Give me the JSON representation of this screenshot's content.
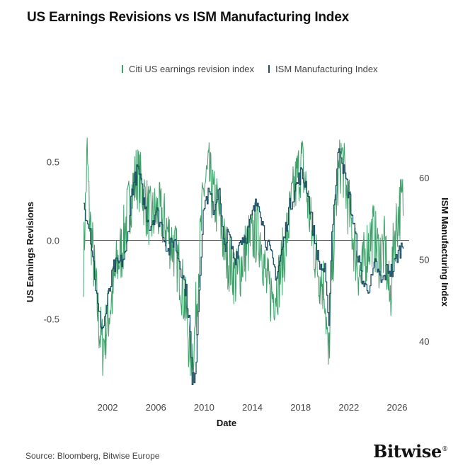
{
  "chart_data": {
    "type": "line",
    "title": "US Earnings Revisions vs ISM Manufacturing Index",
    "xlabel": "Date",
    "ylabel_left": "US Earnings Revisions",
    "ylabel_right": "ISM Manufacturing Index",
    "xlim": [
      2000.0,
      2027.0
    ],
    "ylim_left": [
      -0.88,
      0.74
    ],
    "ylim_right": [
      35.4,
      66.6
    ],
    "x_ticks": [
      "2002",
      "2006",
      "2010",
      "2014",
      "2018",
      "2022",
      "2026"
    ],
    "y_ticks_left": [
      "0.5",
      "0.0",
      "-0.5"
    ],
    "y_ticks_right": [
      "60",
      "50",
      "40"
    ],
    "zero_line": 0.0,
    "grid": false,
    "legend_position": "top",
    "series": [
      {
        "name": "Citi US earnings revision index",
        "color": "#3fa06a",
        "axis": "left",
        "anchors": [
          [
            2000.0,
            -0.15
          ],
          [
            2000.3,
            0.55
          ],
          [
            2000.5,
            0.15
          ],
          [
            2000.8,
            -0.1
          ],
          [
            2001.0,
            -0.3
          ],
          [
            2001.3,
            -0.55
          ],
          [
            2001.6,
            -0.68
          ],
          [
            2002.0,
            -0.5
          ],
          [
            2002.4,
            -0.35
          ],
          [
            2002.8,
            -0.15
          ],
          [
            2003.2,
            -0.05
          ],
          [
            2003.6,
            0.15
          ],
          [
            2004.0,
            0.3
          ],
          [
            2004.4,
            0.42
          ],
          [
            2004.8,
            0.35
          ],
          [
            2005.2,
            0.22
          ],
          [
            2005.6,
            0.12
          ],
          [
            2006.0,
            0.18
          ],
          [
            2006.5,
            0.15
          ],
          [
            2007.0,
            0.05
          ],
          [
            2007.5,
            -0.05
          ],
          [
            2008.0,
            -0.2
          ],
          [
            2008.5,
            -0.45
          ],
          [
            2008.9,
            -0.78
          ],
          [
            2009.2,
            -0.62
          ],
          [
            2009.6,
            -0.1
          ],
          [
            2010.0,
            0.35
          ],
          [
            2010.4,
            0.42
          ],
          [
            2010.8,
            0.25
          ],
          [
            2011.2,
            0.2
          ],
          [
            2011.7,
            -0.05
          ],
          [
            2012.2,
            -0.15
          ],
          [
            2012.7,
            -0.25
          ],
          [
            2013.2,
            -0.12
          ],
          [
            2013.7,
            -0.02
          ],
          [
            2014.2,
            0.05
          ],
          [
            2014.7,
            0.02
          ],
          [
            2015.2,
            -0.3
          ],
          [
            2015.7,
            -0.35
          ],
          [
            2016.2,
            -0.25
          ],
          [
            2016.7,
            -0.05
          ],
          [
            2017.2,
            0.2
          ],
          [
            2017.7,
            0.4
          ],
          [
            2018.1,
            0.5
          ],
          [
            2018.5,
            0.3
          ],
          [
            2019.0,
            0.0
          ],
          [
            2019.5,
            -0.2
          ],
          [
            2020.0,
            -0.3
          ],
          [
            2020.3,
            -0.8
          ],
          [
            2020.6,
            -0.2
          ],
          [
            2021.0,
            0.3
          ],
          [
            2021.4,
            0.55
          ],
          [
            2021.8,
            0.3
          ],
          [
            2022.2,
            0.1
          ],
          [
            2022.6,
            -0.1
          ],
          [
            2023.0,
            -0.25
          ],
          [
            2023.5,
            -0.05
          ],
          [
            2024.0,
            0.05
          ],
          [
            2024.5,
            -0.1
          ],
          [
            2025.0,
            -0.05
          ],
          [
            2025.4,
            -0.4
          ],
          [
            2025.8,
            0.05
          ],
          [
            2026.2,
            0.2
          ],
          [
            2026.5,
            0.25
          ]
        ]
      },
      {
        "name": "ISM Manufacturing Index",
        "color": "#1c4f63",
        "axis": "right",
        "anchors": [
          [
            2000.0,
            56.5
          ],
          [
            2000.4,
            55.0
          ],
          [
            2000.8,
            50.0
          ],
          [
            2001.2,
            43.5
          ],
          [
            2001.6,
            41.5
          ],
          [
            2002.0,
            45.0
          ],
          [
            2002.5,
            49.0
          ],
          [
            2003.0,
            49.5
          ],
          [
            2003.5,
            50.5
          ],
          [
            2004.0,
            58.5
          ],
          [
            2004.5,
            61.0
          ],
          [
            2005.0,
            57.0
          ],
          [
            2005.5,
            54.0
          ],
          [
            2006.0,
            56.0
          ],
          [
            2006.5,
            54.0
          ],
          [
            2007.0,
            51.0
          ],
          [
            2007.5,
            52.5
          ],
          [
            2008.0,
            49.5
          ],
          [
            2008.5,
            46.0
          ],
          [
            2008.8,
            42.0
          ],
          [
            2009.0,
            34.5
          ],
          [
            2009.3,
            37.0
          ],
          [
            2009.6,
            47.5
          ],
          [
            2010.0,
            57.0
          ],
          [
            2010.4,
            58.0
          ],
          [
            2010.8,
            56.0
          ],
          [
            2011.2,
            59.0
          ],
          [
            2011.6,
            51.5
          ],
          [
            2012.0,
            53.0
          ],
          [
            2012.5,
            50.0
          ],
          [
            2013.0,
            52.5
          ],
          [
            2013.5,
            53.0
          ],
          [
            2014.0,
            55.5
          ],
          [
            2014.5,
            57.5
          ],
          [
            2015.0,
            53.0
          ],
          [
            2015.5,
            50.5
          ],
          [
            2016.0,
            48.0
          ],
          [
            2016.5,
            51.5
          ],
          [
            2017.0,
            56.0
          ],
          [
            2017.5,
            58.5
          ],
          [
            2018.0,
            60.5
          ],
          [
            2018.5,
            59.0
          ],
          [
            2019.0,
            54.0
          ],
          [
            2019.5,
            49.5
          ],
          [
            2020.0,
            48.5
          ],
          [
            2020.3,
            41.5
          ],
          [
            2020.6,
            54.0
          ],
          [
            2020.9,
            59.0
          ],
          [
            2021.2,
            64.5
          ],
          [
            2021.6,
            60.5
          ],
          [
            2022.0,
            58.0
          ],
          [
            2022.5,
            53.0
          ],
          [
            2022.9,
            49.0
          ],
          [
            2023.3,
            46.5
          ],
          [
            2023.8,
            47.0
          ],
          [
            2024.2,
            49.5
          ],
          [
            2024.7,
            47.0
          ],
          [
            2025.2,
            49.0
          ],
          [
            2025.6,
            48.5
          ],
          [
            2026.0,
            50.5
          ],
          [
            2026.5,
            52.0
          ]
        ]
      }
    ]
  },
  "footer": {
    "source": "Source: Bloomberg, Bitwise Europe",
    "brand": "Bitwise",
    "brand_mark": "®"
  }
}
